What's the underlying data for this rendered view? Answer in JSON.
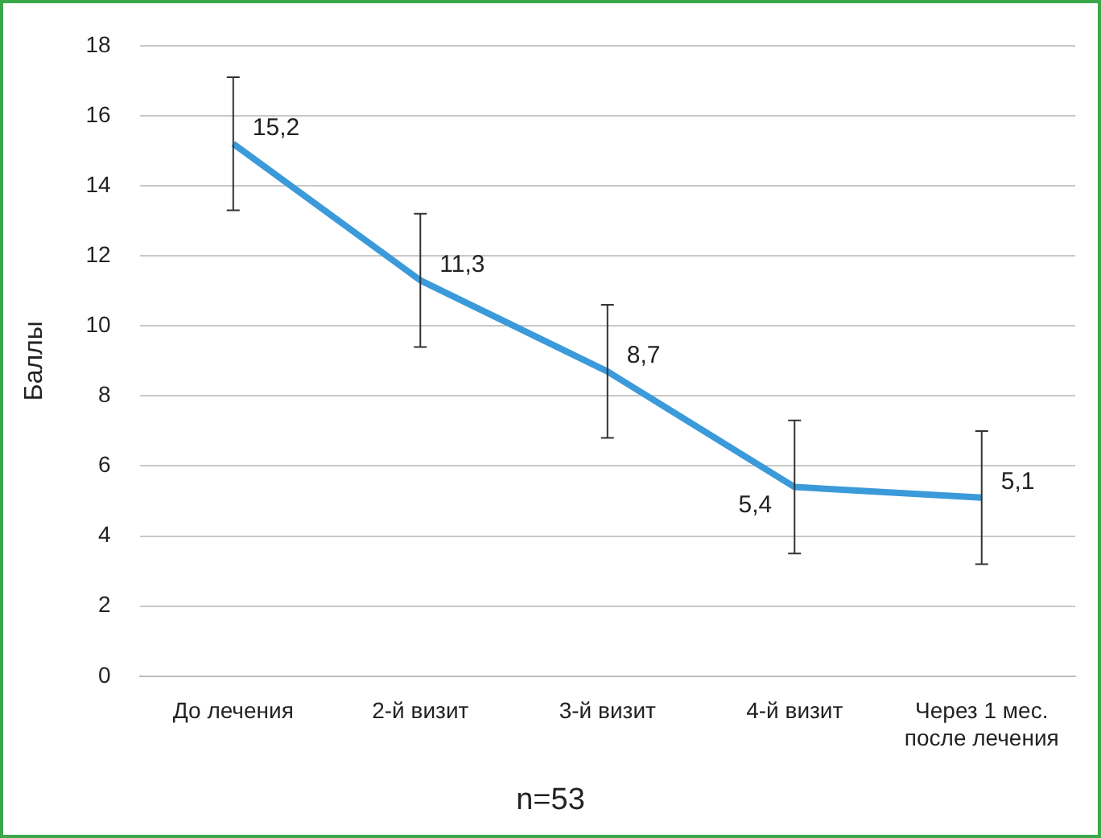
{
  "chart_data": {
    "type": "line",
    "ylabel": "Баллы",
    "categories": [
      "До лечения",
      "2-й визит",
      "3-й визит",
      "4-й визит",
      "Через 1 мес. после лечения"
    ],
    "series": [
      {
        "color": "#3b9ad9",
        "values": [
          15.2,
          11.3,
          8.7,
          5.4,
          5.1
        ],
        "errors": [
          1.9,
          1.9,
          1.9,
          1.9,
          1.9
        ],
        "value_labels": [
          "15,2",
          "11,3",
          "8,7",
          "5,4",
          "5,1"
        ]
      }
    ],
    "ylim": [
      0,
      18
    ],
    "yticks": [
      0,
      2,
      4,
      6,
      8,
      10,
      12,
      14,
      16,
      18
    ],
    "grid": "y",
    "legend": false,
    "marker": "none",
    "line_style": "solid",
    "annotations": [
      "n=53"
    ]
  }
}
